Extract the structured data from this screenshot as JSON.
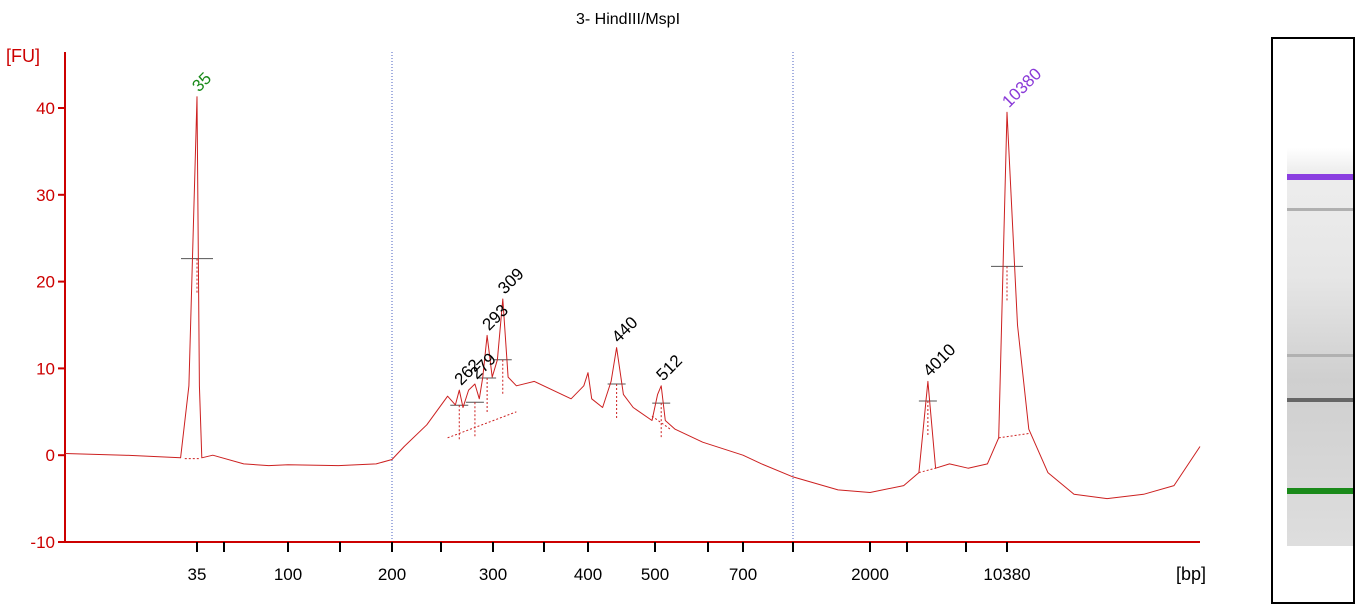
{
  "chart_data": {
    "type": "line",
    "title": "3- HindIII/MspI",
    "ylabel": "[FU]",
    "xlabel": "[bp]",
    "ylim": [
      -10,
      45
    ],
    "yticks": [
      -10,
      0,
      10,
      20,
      30,
      40
    ],
    "xtick_labels": [
      "35",
      "100",
      "200",
      "300",
      "400",
      "500",
      "700",
      "2000",
      "10380"
    ],
    "grid": false,
    "series": [
      {
        "color": "#cc2020",
        "x": [
          21.8,
          27.0,
          33.0,
          34.0,
          35.0,
          36.0,
          37.0,
          42.0,
          60.0,
          80.0,
          100.0,
          140.0,
          180.0,
          200.0,
          210.0,
          230.0,
          250.0,
          258.0,
          262.0,
          266.0,
          272.0,
          279.0,
          284.0,
          288.0,
          293.0,
          299.0,
          304.0,
          309.0,
          314.0,
          322.0,
          340.0,
          380.0,
          395.0,
          400.0,
          405.0,
          420.0,
          432.0,
          440.0,
          450.0,
          465.0,
          495.0,
          505.0,
          512.0,
          520.0,
          540.0,
          600.0,
          700.0,
          800.0,
          1000.0,
          1500.0,
          2000.0,
          3000.0,
          3600.0,
          4010.0,
          4400.0,
          5200.0,
          6500.0,
          8200.0,
          9400.0,
          10380.0,
          11000.0,
          11700.0,
          13000.0,
          15000.0,
          18000.0,
          22000.0,
          26000.0,
          30000.0
        ],
        "y": [
          0.2,
          0.0,
          -0.3,
          8.0,
          41.3,
          8.0,
          -0.3,
          0.0,
          -1.0,
          -1.2,
          -1.1,
          -1.2,
          -1.0,
          -0.5,
          1.0,
          3.5,
          6.8,
          5.8,
          7.5,
          5.5,
          7.5,
          8.2,
          6.5,
          9.0,
          13.8,
          9.0,
          11.0,
          18.0,
          9.0,
          8.0,
          8.5,
          6.5,
          8.0,
          9.5,
          6.5,
          5.5,
          8.5,
          12.4,
          7.0,
          5.5,
          4.0,
          7.0,
          8.0,
          4.0,
          3.0,
          1.5,
          0.0,
          -1.0,
          -2.5,
          -4.0,
          -4.3,
          -3.5,
          -2.0,
          8.5,
          -1.5,
          -1.0,
          -1.5,
          -1.0,
          2.0,
          39.5,
          15.0,
          3.0,
          -2.0,
          -4.5,
          -5.0,
          -4.5,
          -3.5,
          1.0
        ]
      }
    ],
    "peaks": [
      {
        "label": "35",
        "x": 35.0,
        "y": 41.3,
        "color": "#1a8a1a"
      },
      {
        "label": "262",
        "x": 262.0,
        "y": 7.5,
        "color": "#000000"
      },
      {
        "label": "279",
        "x": 279.0,
        "y": 8.2,
        "color": "#000000"
      },
      {
        "label": "293",
        "x": 293.0,
        "y": 13.8,
        "color": "#000000"
      },
      {
        "label": "309",
        "x": 309.0,
        "y": 18.0,
        "color": "#000000"
      },
      {
        "label": "440",
        "x": 440.0,
        "y": 12.4,
        "color": "#000000"
      },
      {
        "label": "512",
        "x": 512.0,
        "y": 8.0,
        "color": "#000000"
      },
      {
        "label": "4010",
        "x": 4010.0,
        "y": 8.5,
        "color": "#000000"
      },
      {
        "label": "10380",
        "x": 10380.0,
        "y": 39.5,
        "color": "#8a3ad8"
      }
    ],
    "axis_color": "#cc0000"
  },
  "gel": {
    "bands": [
      {
        "position": 0.246,
        "color": "#8a3ee0",
        "weight": "strong"
      },
      {
        "position": 0.303,
        "color": "#888888",
        "weight": "faint"
      },
      {
        "position": 0.563,
        "color": "#999999",
        "weight": "faint"
      },
      {
        "position": 0.642,
        "color": "#666666",
        "weight": "medium"
      },
      {
        "position": 0.803,
        "color": "#1a8a1a",
        "weight": "strong"
      }
    ]
  }
}
